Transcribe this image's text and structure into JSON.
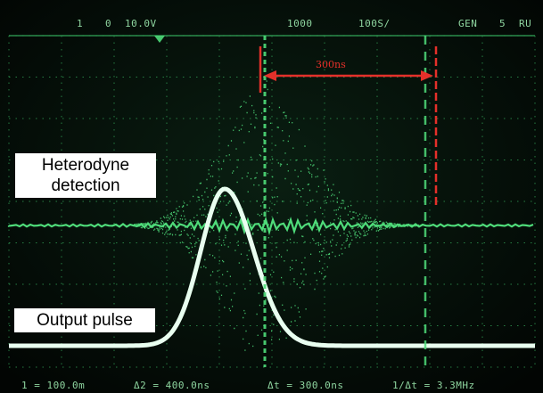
{
  "scope": {
    "top_readouts": [
      "1",
      "0",
      "10.0V",
      "1000",
      "100S/",
      "GEN",
      "5",
      "RU"
    ],
    "bottom_readouts": [
      "1 = 100.0m",
      "Δ2 = 400.0ns",
      "Δt = 300.0ns",
      "1/Δt = 3.3MHz"
    ]
  },
  "annotations": {
    "heterodyne_label": "Heterodyne detection",
    "output_label": "Output pulse",
    "time_marker": "300ns"
  },
  "colors": {
    "trace_green": "#4fdc7a",
    "pulse_white": "#e9fff0",
    "marker_red": "#e4302a",
    "grid_green": "#2f9a52"
  }
}
